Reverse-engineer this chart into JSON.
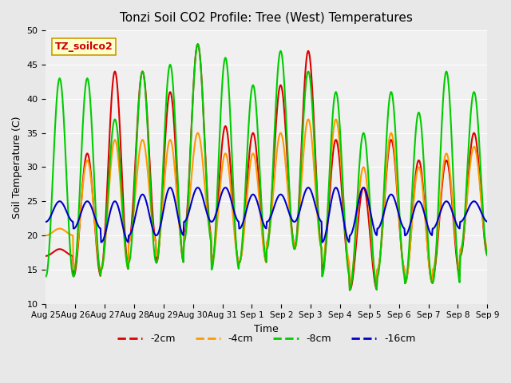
{
  "title": "Tonzi Soil CO2 Profile: Tree (West) Temperatures",
  "ylabel": "Soil Temperature (C)",
  "xlabel": "Time",
  "ylim": [
    10,
    50
  ],
  "bg_color": "#e8e8e8",
  "plot_bg_color": "#f0f0f0",
  "series": {
    "-2cm": {
      "color": "#dd0000",
      "lw": 1.5
    },
    "-4cm": {
      "color": "#ff9900",
      "lw": 1.5
    },
    "-8cm": {
      "color": "#00cc00",
      "lw": 1.5
    },
    "-16cm": {
      "color": "#0000cc",
      "lw": 1.5
    }
  },
  "legend_label": "TZ_soilco2",
  "x_tick_labels": [
    "Aug 25",
    "Aug 26",
    "Aug 27",
    "Aug 28",
    "Aug 29",
    "Aug 30",
    "Aug 31",
    "Sep 1",
    "Sep 2",
    "Sep 3",
    "Sep 4",
    "Sep 5",
    "Sep 6",
    "Sep 7",
    "Sep 8",
    "Sep 9"
  ],
  "n_days": 16,
  "samples_per_day": 48,
  "depths": {
    "-2cm": {
      "min_vals": [
        17,
        14,
        15,
        19,
        16,
        20,
        16,
        16,
        19,
        18,
        15,
        12,
        15,
        13,
        14,
        17
      ],
      "max_vals": [
        18,
        32,
        44,
        44,
        41,
        48,
        36,
        35,
        42,
        47,
        34,
        27,
        34,
        31,
        31,
        35
      ]
    },
    "-4cm": {
      "min_vals": [
        20,
        15,
        15,
        19,
        17,
        20,
        16,
        16,
        19,
        18,
        16,
        13,
        15,
        13,
        15,
        18
      ],
      "max_vals": [
        21,
        31,
        34,
        34,
        34,
        35,
        32,
        32,
        35,
        37,
        37,
        30,
        35,
        30,
        32,
        33
      ]
    },
    "-8cm": {
      "min_vals": [
        14,
        14,
        15,
        16,
        16,
        19,
        15,
        16,
        18,
        18,
        14,
        12,
        14,
        13,
        13,
        17
      ],
      "max_vals": [
        43,
        43,
        37,
        44,
        45,
        48,
        46,
        42,
        47,
        44,
        41,
        35,
        41,
        38,
        44,
        41
      ]
    },
    "-16cm": {
      "min_vals": [
        22,
        21,
        19,
        20,
        20,
        22,
        22,
        21,
        22,
        22,
        19,
        20,
        21,
        20,
        21,
        22
      ],
      "max_vals": [
        25,
        25,
        25,
        26,
        27,
        27,
        27,
        26,
        26,
        27,
        27,
        27,
        26,
        25,
        25,
        25
      ]
    }
  }
}
